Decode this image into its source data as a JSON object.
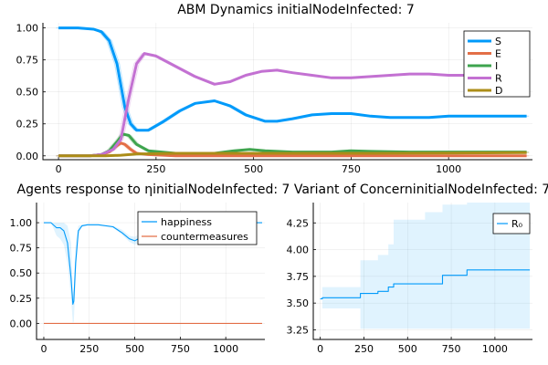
{
  "chart_data": [
    {
      "type": "line",
      "title": "ABM Dynamics initialNodeInfected: 7",
      "xlabel": "",
      "ylabel": "",
      "xlim": [
        -40,
        1215
      ],
      "ylim": [
        -0.03,
        1.04
      ],
      "xticks": [
        0,
        250,
        500,
        750,
        1000
      ],
      "yticks": [
        0.0,
        0.25,
        0.5,
        0.75,
        1.0
      ],
      "ytick_labels": [
        "0.00",
        "0.25",
        "0.50",
        "0.75",
        "1.00"
      ],
      "grid": true,
      "legend_position": "top-right",
      "series": [
        {
          "name": "S",
          "color": "#009AFA",
          "x": [
            0,
            50,
            90,
            110,
            130,
            150,
            160,
            170,
            185,
            200,
            230,
            270,
            310,
            350,
            400,
            440,
            480,
            530,
            560,
            600,
            650,
            700,
            750,
            800,
            850,
            900,
            950,
            1000,
            1050,
            1100,
            1150,
            1200
          ],
          "y": [
            1.0,
            1.0,
            0.99,
            0.97,
            0.9,
            0.72,
            0.55,
            0.38,
            0.25,
            0.2,
            0.2,
            0.27,
            0.35,
            0.41,
            0.43,
            0.39,
            0.32,
            0.27,
            0.27,
            0.29,
            0.32,
            0.33,
            0.33,
            0.31,
            0.3,
            0.3,
            0.3,
            0.31,
            0.31,
            0.31,
            0.31,
            0.31
          ]
        },
        {
          "name": "E",
          "color": "#E36F47",
          "x": [
            0,
            80,
            110,
            130,
            150,
            160,
            170,
            185,
            200,
            230,
            300,
            500,
            800,
            1200
          ],
          "y": [
            0.0,
            0.0,
            0.01,
            0.03,
            0.08,
            0.1,
            0.09,
            0.05,
            0.02,
            0.01,
            0.0,
            0.0,
            0.0,
            0.0
          ]
        },
        {
          "name": "I",
          "color": "#3EA44E",
          "x": [
            0,
            80,
            110,
            130,
            150,
            165,
            180,
            200,
            230,
            300,
            400,
            450,
            490,
            530,
            600,
            700,
            750,
            800,
            900,
            1000,
            1100,
            1200
          ],
          "y": [
            0.0,
            0.0,
            0.01,
            0.04,
            0.11,
            0.17,
            0.16,
            0.09,
            0.04,
            0.02,
            0.02,
            0.04,
            0.05,
            0.04,
            0.03,
            0.03,
            0.04,
            0.035,
            0.03,
            0.03,
            0.03,
            0.03
          ]
        },
        {
          "name": "R",
          "color": "#C371D2",
          "x": [
            0,
            80,
            110,
            140,
            160,
            180,
            200,
            220,
            250,
            300,
            350,
            400,
            440,
            480,
            520,
            560,
            600,
            650,
            700,
            750,
            800,
            850,
            900,
            950,
            1000,
            1050,
            1100,
            1150,
            1200
          ],
          "y": [
            0.0,
            0.0,
            0.01,
            0.05,
            0.13,
            0.45,
            0.72,
            0.8,
            0.78,
            0.7,
            0.62,
            0.56,
            0.58,
            0.63,
            0.66,
            0.67,
            0.65,
            0.63,
            0.61,
            0.61,
            0.62,
            0.63,
            0.64,
            0.64,
            0.63,
            0.63,
            0.63,
            0.63,
            0.62
          ]
        },
        {
          "name": "D",
          "color": "#AC8D18",
          "x": [
            0,
            120,
            160,
            200,
            300,
            500,
            800,
            1000,
            1200
          ],
          "y": [
            0.0,
            0.0,
            0.005,
            0.015,
            0.02,
            0.02,
            0.02,
            0.022,
            0.025
          ]
        }
      ]
    },
    {
      "type": "line",
      "title": "Agents response to ηinitialNodeInfected: 7",
      "xlabel": "",
      "ylabel": "",
      "xlim": [
        -40,
        1215
      ],
      "ylim": [
        -0.16,
        1.2
      ],
      "xticks": [
        0,
        250,
        500,
        750,
        1000
      ],
      "yticks": [
        0.0,
        0.25,
        0.5,
        0.75,
        1.0
      ],
      "ytick_labels": [
        "0.00",
        "0.25",
        "0.50",
        "0.75",
        "1.00"
      ],
      "grid": true,
      "legend_position": "top-right",
      "series": [
        {
          "name": "happiness",
          "color": "#009AFA",
          "x": [
            0,
            40,
            70,
            90,
            110,
            130,
            150,
            160,
            165,
            175,
            190,
            210,
            240,
            300,
            380,
            430,
            470,
            500,
            540,
            600,
            700,
            800,
            900,
            1000,
            1100,
            1200
          ],
          "y": [
            1.0,
            1.0,
            0.95,
            0.95,
            0.92,
            0.8,
            0.45,
            0.19,
            0.22,
            0.6,
            0.92,
            0.97,
            0.98,
            0.98,
            0.96,
            0.9,
            0.84,
            0.82,
            0.86,
            0.92,
            0.97,
            0.99,
            1.0,
            1.0,
            1.0,
            1.0
          ],
          "band_upper": [
            1.0,
            1.0,
            1.0,
            1.0,
            1.0,
            0.97,
            0.8,
            0.3,
            0.35,
            0.8,
            0.97,
            0.98,
            0.98,
            0.98,
            0.97,
            0.93,
            0.87,
            0.86,
            0.9,
            0.95,
            0.98,
            1.0,
            1.0,
            1.0,
            1.0,
            1.0
          ],
          "band_lower": [
            1.0,
            1.0,
            0.87,
            0.84,
            0.78,
            0.6,
            0.25,
            0.0,
            0.02,
            0.4,
            0.88,
            0.96,
            0.97,
            0.97,
            0.95,
            0.88,
            0.81,
            0.78,
            0.82,
            0.89,
            0.96,
            0.99,
            1.0,
            1.0,
            1.0,
            1.0
          ]
        },
        {
          "name": "countermeasures",
          "color": "#E36F47",
          "x": [
            0,
            1200
          ],
          "y": [
            0.0,
            0.0
          ]
        }
      ]
    },
    {
      "type": "line",
      "title": "Variant of ConcerninitialNodeInfected: 7",
      "xlabel": "",
      "ylabel": "",
      "xlim": [
        -40,
        1215
      ],
      "ylim": [
        3.16,
        4.44
      ],
      "xticks": [
        0,
        250,
        500,
        750,
        1000
      ],
      "yticks": [
        3.25,
        3.5,
        3.75,
        4.0,
        4.25
      ],
      "ytick_labels": [
        "3.25",
        "3.50",
        "3.75",
        "4.00",
        "4.25"
      ],
      "grid": true,
      "legend_position": "top-right",
      "series": [
        {
          "name": "R₀",
          "color": "#009AFA",
          "step": true,
          "x": [
            0,
            12,
            230,
            330,
            390,
            420,
            600,
            700,
            840,
            1200
          ],
          "y": [
            3.54,
            3.55,
            3.59,
            3.61,
            3.65,
            3.68,
            3.68,
            3.76,
            3.81,
            3.81
          ],
          "band_upper": [
            3.54,
            3.65,
            3.9,
            3.95,
            4.05,
            4.28,
            4.35,
            4.42,
            4.44,
            4.44
          ],
          "band_lower": [
            3.54,
            3.45,
            3.26,
            3.26,
            3.26,
            3.26,
            3.26,
            3.26,
            3.26,
            3.26
          ]
        }
      ]
    }
  ]
}
